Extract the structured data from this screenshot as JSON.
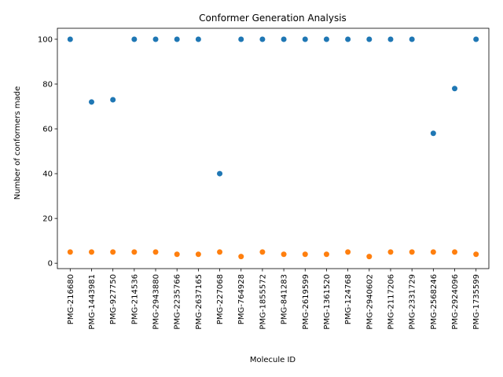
{
  "chart_data": {
    "type": "scatter",
    "title": "Conformer Generation Analysis",
    "xlabel": "Molecule ID",
    "ylabel": "Number of conformers made",
    "categories": [
      "PMG-216680",
      "PMG-1443981",
      "PMG-927750",
      "PMG-214536",
      "PMG-2943880",
      "PMG-2235766",
      "PMG-2637165",
      "PMG-227068",
      "PMG-764928",
      "PMG-1855572",
      "PMG-841283",
      "PMG-2619599",
      "PMG-1361520",
      "PMG-124768",
      "PMG-2940602",
      "PMG-2117206",
      "PMG-2331729",
      "PMG-2568246",
      "PMG-2924096",
      "PMG-1735599"
    ],
    "series": [
      {
        "color": "#1f77b4",
        "values": [
          100,
          72,
          73,
          100,
          100,
          100,
          100,
          40,
          100,
          100,
          100,
          100,
          100,
          100,
          100,
          100,
          100,
          58,
          78,
          100
        ]
      },
      {
        "color": "#ff7f0e",
        "values": [
          5,
          5,
          5,
          5,
          5,
          4,
          4,
          5,
          3,
          5,
          4,
          4,
          4,
          5,
          3,
          5,
          5,
          5,
          5,
          4
        ]
      }
    ],
    "yticks": [
      0,
      20,
      40,
      60,
      80,
      100
    ],
    "ylim": [
      -2.4,
      104.9
    ],
    "grid": false,
    "legend": "none"
  }
}
